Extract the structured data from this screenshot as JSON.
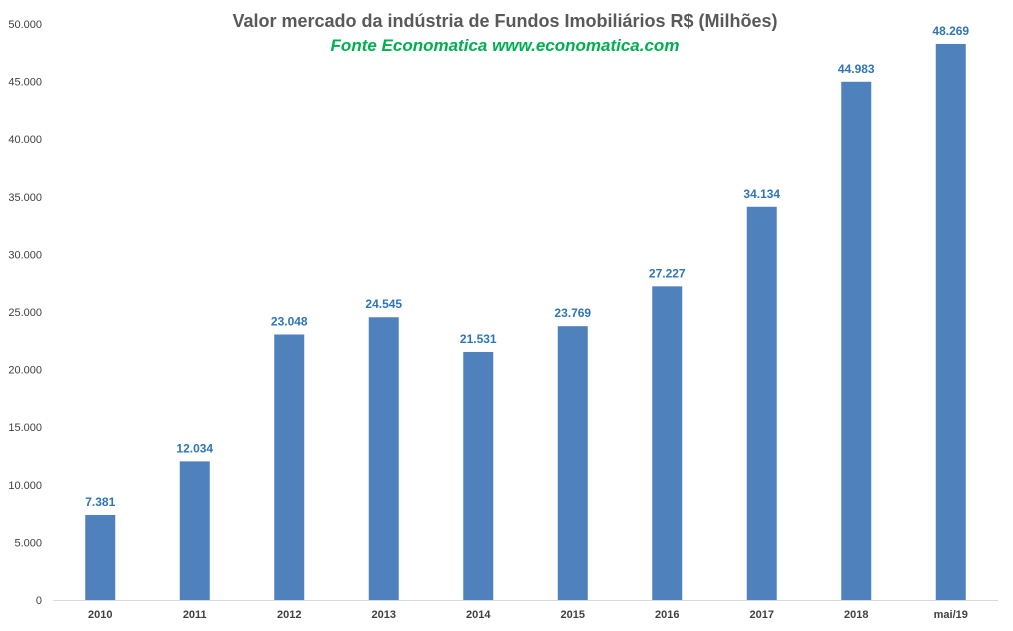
{
  "chart_data": {
    "type": "bar",
    "title": "Valor mercado da indústria de Fundos Imobiliários R$ (Milhões)",
    "subtitle": "Fonte Economatica www.economatica.com",
    "categories": [
      "2010",
      "2011",
      "2012",
      "2013",
      "2014",
      "2015",
      "2016",
      "2017",
      "2018",
      "mai/19"
    ],
    "values": [
      7381,
      12034,
      23048,
      24545,
      21531,
      23769,
      27227,
      34134,
      44983,
      48269
    ],
    "data_labels": [
      "7.381",
      "12.034",
      "23.048",
      "24.545",
      "21.531",
      "23.769",
      "27.227",
      "34.134",
      "44.983",
      "48.269"
    ],
    "y_ticks": [
      "0",
      "5.000",
      "10.000",
      "15.000",
      "20.000",
      "25.000",
      "30.000",
      "35.000",
      "40.000",
      "45.000",
      "50.000"
    ],
    "ylim": [
      0,
      50000
    ],
    "grid": false,
    "legend": "none",
    "colors": {
      "bar": "#4f81bd",
      "data_label": "#2e75b6",
      "subtitle": "#00b050",
      "title": "#595959"
    }
  }
}
